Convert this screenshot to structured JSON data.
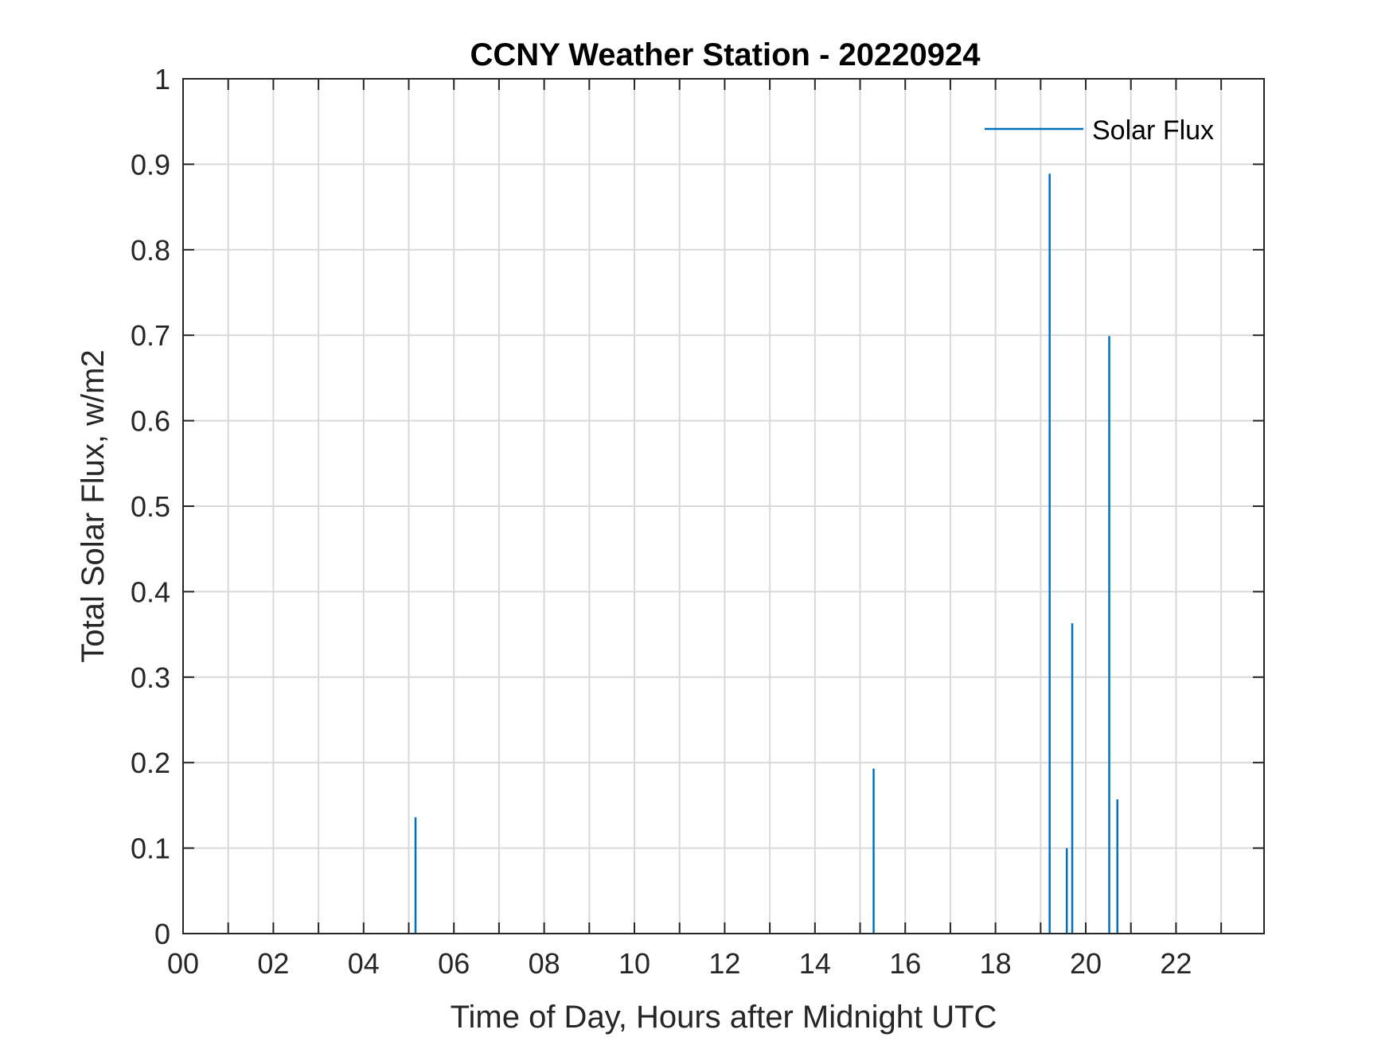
{
  "chart_data": {
    "type": "line",
    "title": "CCNY Weather Station - 20220924",
    "xlabel": "Time of Day, Hours after Midnight UTC",
    "ylabel": "Total Solar Flux, w/m2",
    "xlim": [
      0,
      24
    ],
    "ylim": [
      0,
      1
    ],
    "x_ticks": [
      0,
      2,
      4,
      6,
      8,
      10,
      12,
      14,
      16,
      18,
      20,
      22
    ],
    "x_tick_labels": [
      "00",
      "02",
      "04",
      "06",
      "08",
      "10",
      "12",
      "14",
      "16",
      "18",
      "20",
      "22"
    ],
    "x_grid": [
      0,
      1,
      2,
      3,
      4,
      5,
      6,
      7,
      8,
      9,
      10,
      11,
      12,
      13,
      14,
      15,
      16,
      17,
      18,
      19,
      20,
      21,
      22,
      23
    ],
    "y_ticks": [
      0,
      0.1,
      0.2,
      0.3,
      0.4,
      0.5,
      0.6,
      0.7,
      0.8,
      0.9,
      1
    ],
    "y_tick_labels": [
      "0",
      "0.1",
      "0.2",
      "0.3",
      "0.4",
      "0.5",
      "0.6",
      "0.7",
      "0.8",
      "0.9",
      "1"
    ],
    "grid": true,
    "legend_position": "top-right",
    "series": [
      {
        "name": "Solar Flux",
        "color": "#0072BD",
        "spikes": [
          {
            "x": 5.15,
            "y": 0.136
          },
          {
            "x": 15.3,
            "y": 0.193
          },
          {
            "x": 19.2,
            "y": 0.889
          },
          {
            "x": 19.58,
            "y": 0.1
          },
          {
            "x": 19.7,
            "y": 0.363
          },
          {
            "x": 20.52,
            "y": 0.699
          },
          {
            "x": 20.7,
            "y": 0.157
          }
        ]
      }
    ]
  }
}
